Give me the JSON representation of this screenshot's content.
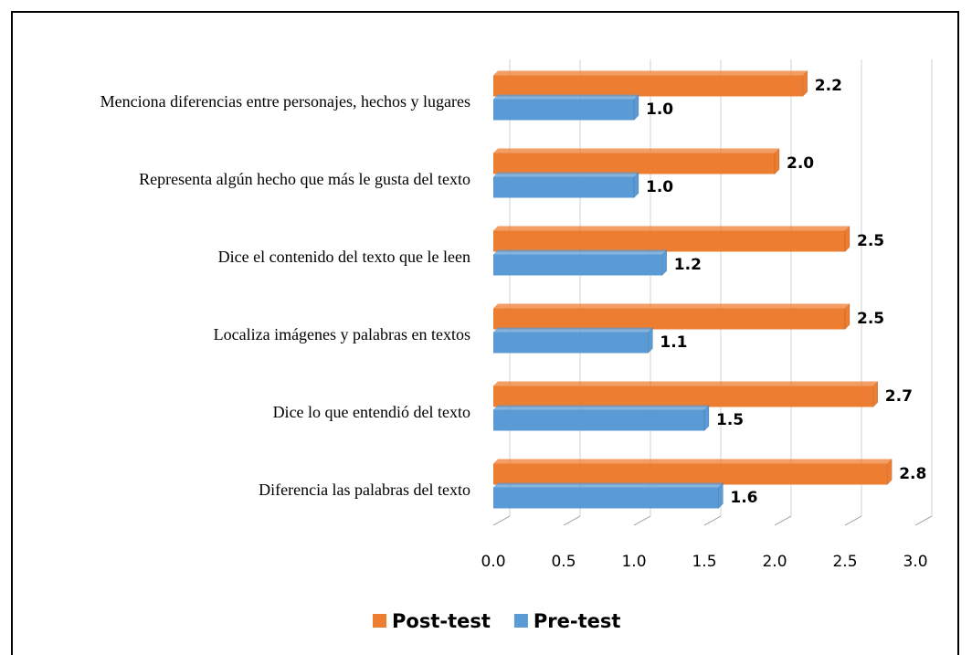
{
  "chart_data": {
    "type": "bar",
    "orientation": "horizontal",
    "categories": [
      "Menciona diferencias entre personajes, hechos y lugares",
      "Representa algún hecho que más le gusta del texto",
      "Dice el contenido del texto que le leen",
      "Localiza  imágenes y palabras en textos",
      "Dice lo que entendió del texto",
      "Diferencia las palabras del texto"
    ],
    "series": [
      {
        "name": "Post-test",
        "color": "#ed7d31",
        "values": [
          2.2,
          2.0,
          2.5,
          2.5,
          2.7,
          2.8
        ],
        "value_labels": [
          "2.2",
          "2.0",
          "2.5",
          "2.5",
          "2.7",
          "2.8"
        ]
      },
      {
        "name": "Pre-test",
        "color": "#5b9bd5",
        "values": [
          1.0,
          1.0,
          1.2,
          1.1,
          1.5,
          1.6
        ],
        "value_labels": [
          "1.0",
          "1.0",
          "1.2",
          "1.1",
          "1.5",
          "1.6"
        ]
      }
    ],
    "xlim": [
      0,
      3
    ],
    "xticks": [
      {
        "value": 0,
        "label": "0.0"
      },
      0.5,
      {
        "value": 1,
        "label": "1.0"
      },
      1.5,
      {
        "value": 2,
        "label": "2.0"
      },
      2.5,
      {
        "value": 3,
        "label": "3.0"
      }
    ],
    "grid": true,
    "legend": "bottom"
  }
}
